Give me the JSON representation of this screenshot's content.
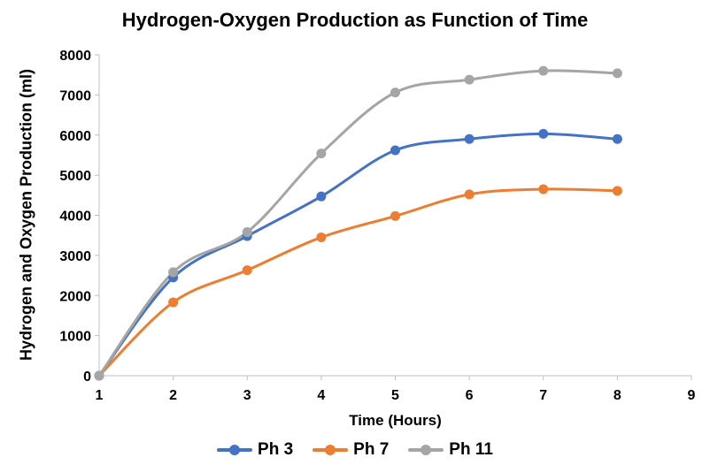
{
  "chart_data": {
    "type": "line",
    "title": "Hydrogen-Oxygen Production as Function of Time",
    "xlabel": "Time (Hours)",
    "ylabel": "Hydrogen and Oxygen Production (ml)",
    "xlim": [
      1,
      9
    ],
    "ylim": [
      0,
      8000
    ],
    "xticks": [
      1,
      2,
      3,
      4,
      5,
      6,
      7,
      8,
      9
    ],
    "yticks": [
      0,
      1000,
      2000,
      3000,
      4000,
      5000,
      6000,
      7000,
      8000
    ],
    "x": [
      1,
      2,
      3,
      4,
      5,
      6,
      7,
      8
    ],
    "grid": false,
    "legend_position": "bottom",
    "series": [
      {
        "name": "Ph 3",
        "color": "#4472C4",
        "values": [
          0,
          2450,
          3480,
          4470,
          5620,
          5900,
          6030,
          5900
        ]
      },
      {
        "name": "Ph 7",
        "color": "#ED7D31",
        "values": [
          0,
          1830,
          2630,
          3450,
          3980,
          4520,
          4650,
          4610
        ]
      },
      {
        "name": "Ph 11",
        "color": "#A5A5A5",
        "values": [
          0,
          2580,
          3580,
          5540,
          7060,
          7380,
          7600,
          7540
        ]
      }
    ]
  }
}
